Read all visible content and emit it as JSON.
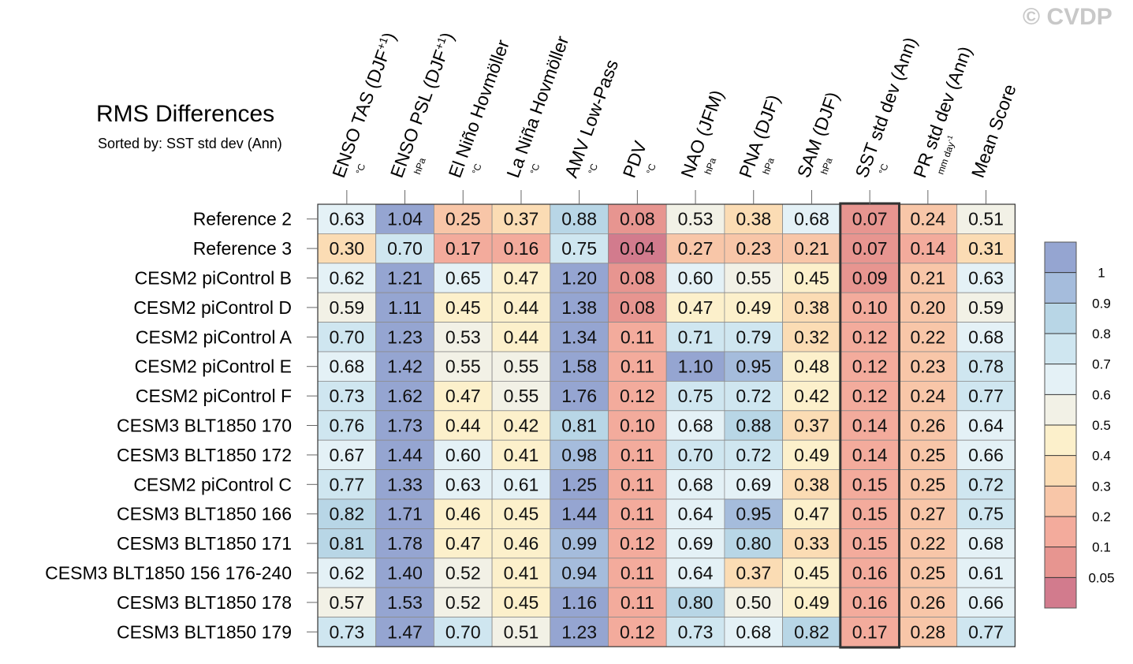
{
  "watermark": "© CVDP",
  "chart_data": {
    "type": "heatmap",
    "title": "RMS Differences",
    "subtitle": "Sorted by: SST std dev (Ann)",
    "columns": [
      {
        "label": "ENSO TAS (DJF",
        "sup": "+1",
        "close": ")",
        "unit": "°C"
      },
      {
        "label": "ENSO PSL (DJF",
        "sup": "+1",
        "close": ")",
        "unit": "hPa"
      },
      {
        "label": "El Niño Hovmöller",
        "unit": "°C"
      },
      {
        "label": "La Niña Hovmöller",
        "unit": "°C"
      },
      {
        "label": "AMV Low-Pass",
        "unit": "°C"
      },
      {
        "label": "PDV",
        "unit": "°C"
      },
      {
        "label": "NAO (JFM)",
        "unit": "hPa"
      },
      {
        "label": "PNA (DJF)",
        "unit": "hPa"
      },
      {
        "label": "SAM (DJF)",
        "unit": "hPa"
      },
      {
        "label": "SST std dev (Ann)",
        "unit": "°C"
      },
      {
        "label": "PR std dev (Ann)",
        "unit": "mm day",
        "unit_sup": "-1"
      },
      {
        "label": "Mean Score",
        "unit": ""
      }
    ],
    "rows": [
      "Reference 2",
      "Reference 3",
      "CESM2 piControl B",
      "CESM2 piControl D",
      "CESM2 piControl A",
      "CESM2 piControl E",
      "CESM2 piControl F",
      "CESM3 BLT1850 170",
      "CESM3 BLT1850 172",
      "CESM2 piControl C",
      "CESM3 BLT1850 166",
      "CESM3 BLT1850 171",
      "CESM3 BLT1850 156 176-240",
      "CESM3 BLT1850 178",
      "CESM3 BLT1850 179"
    ],
    "values": [
      [
        "0.63",
        "1.04",
        "0.25",
        "0.37",
        "0.88",
        "0.08",
        "0.53",
        "0.38",
        "0.68",
        "0.07",
        "0.24",
        "0.51"
      ],
      [
        "0.30",
        "0.70",
        "0.17",
        "0.16",
        "0.75",
        "0.04",
        "0.27",
        "0.23",
        "0.21",
        "0.07",
        "0.14",
        "0.31"
      ],
      [
        "0.62",
        "1.21",
        "0.65",
        "0.47",
        "1.20",
        "0.08",
        "0.60",
        "0.55",
        "0.45",
        "0.09",
        "0.21",
        "0.63"
      ],
      [
        "0.59",
        "1.11",
        "0.45",
        "0.44",
        "1.38",
        "0.08",
        "0.47",
        "0.49",
        "0.38",
        "0.10",
        "0.20",
        "0.59"
      ],
      [
        "0.70",
        "1.23",
        "0.53",
        "0.44",
        "1.34",
        "0.11",
        "0.71",
        "0.79",
        "0.32",
        "0.12",
        "0.22",
        "0.68"
      ],
      [
        "0.68",
        "1.42",
        "0.55",
        "0.55",
        "1.58",
        "0.11",
        "1.10",
        "0.95",
        "0.48",
        "0.12",
        "0.23",
        "0.78"
      ],
      [
        "0.73",
        "1.62",
        "0.47",
        "0.55",
        "1.76",
        "0.12",
        "0.75",
        "0.72",
        "0.42",
        "0.12",
        "0.24",
        "0.77"
      ],
      [
        "0.76",
        "1.73",
        "0.44",
        "0.42",
        "0.81",
        "0.10",
        "0.68",
        "0.88",
        "0.37",
        "0.14",
        "0.26",
        "0.64"
      ],
      [
        "0.67",
        "1.44",
        "0.60",
        "0.41",
        "0.98",
        "0.11",
        "0.70",
        "0.72",
        "0.49",
        "0.14",
        "0.25",
        "0.66"
      ],
      [
        "0.77",
        "1.33",
        "0.63",
        "0.61",
        "1.25",
        "0.11",
        "0.68",
        "0.69",
        "0.38",
        "0.15",
        "0.25",
        "0.72"
      ],
      [
        "0.82",
        "1.71",
        "0.46",
        "0.45",
        "1.44",
        "0.11",
        "0.64",
        "0.95",
        "0.47",
        "0.15",
        "0.27",
        "0.75"
      ],
      [
        "0.81",
        "1.78",
        "0.47",
        "0.46",
        "0.99",
        "0.12",
        "0.69",
        "0.80",
        "0.33",
        "0.15",
        "0.22",
        "0.68"
      ],
      [
        "0.62",
        "1.40",
        "0.52",
        "0.41",
        "0.94",
        "0.11",
        "0.64",
        "0.37",
        "0.45",
        "0.16",
        "0.25",
        "0.61"
      ],
      [
        "0.57",
        "1.53",
        "0.52",
        "0.45",
        "1.16",
        "0.11",
        "0.80",
        "0.50",
        "0.49",
        "0.16",
        "0.26",
        "0.66"
      ],
      [
        "0.73",
        "1.47",
        "0.70",
        "0.51",
        "1.23",
        "0.12",
        "0.73",
        "0.68",
        "0.82",
        "0.17",
        "0.28",
        "0.77"
      ]
    ],
    "highlighted_column": "SST std dev (Ann)",
    "colorbar": {
      "levels": [
        0.05,
        0.1,
        0.2,
        0.3,
        0.4,
        0.5,
        0.6,
        0.7,
        0.8,
        0.9,
        1
      ],
      "tick_labels": [
        "0.05",
        "0.1",
        "0.2",
        "0.3",
        "0.4",
        "0.5",
        "0.6",
        "0.7",
        "0.8",
        "0.9",
        "1"
      ],
      "colors": [
        "#d27b8d",
        "#e79590",
        "#f3ab9c",
        "#f8c6a8",
        "#fbdcb4",
        "#fcf0cb",
        "#f2f1e6",
        "#e4f1f6",
        "#cfe6f0",
        "#b8d6e6",
        "#a5bcdc",
        "#95a5d1"
      ]
    }
  }
}
